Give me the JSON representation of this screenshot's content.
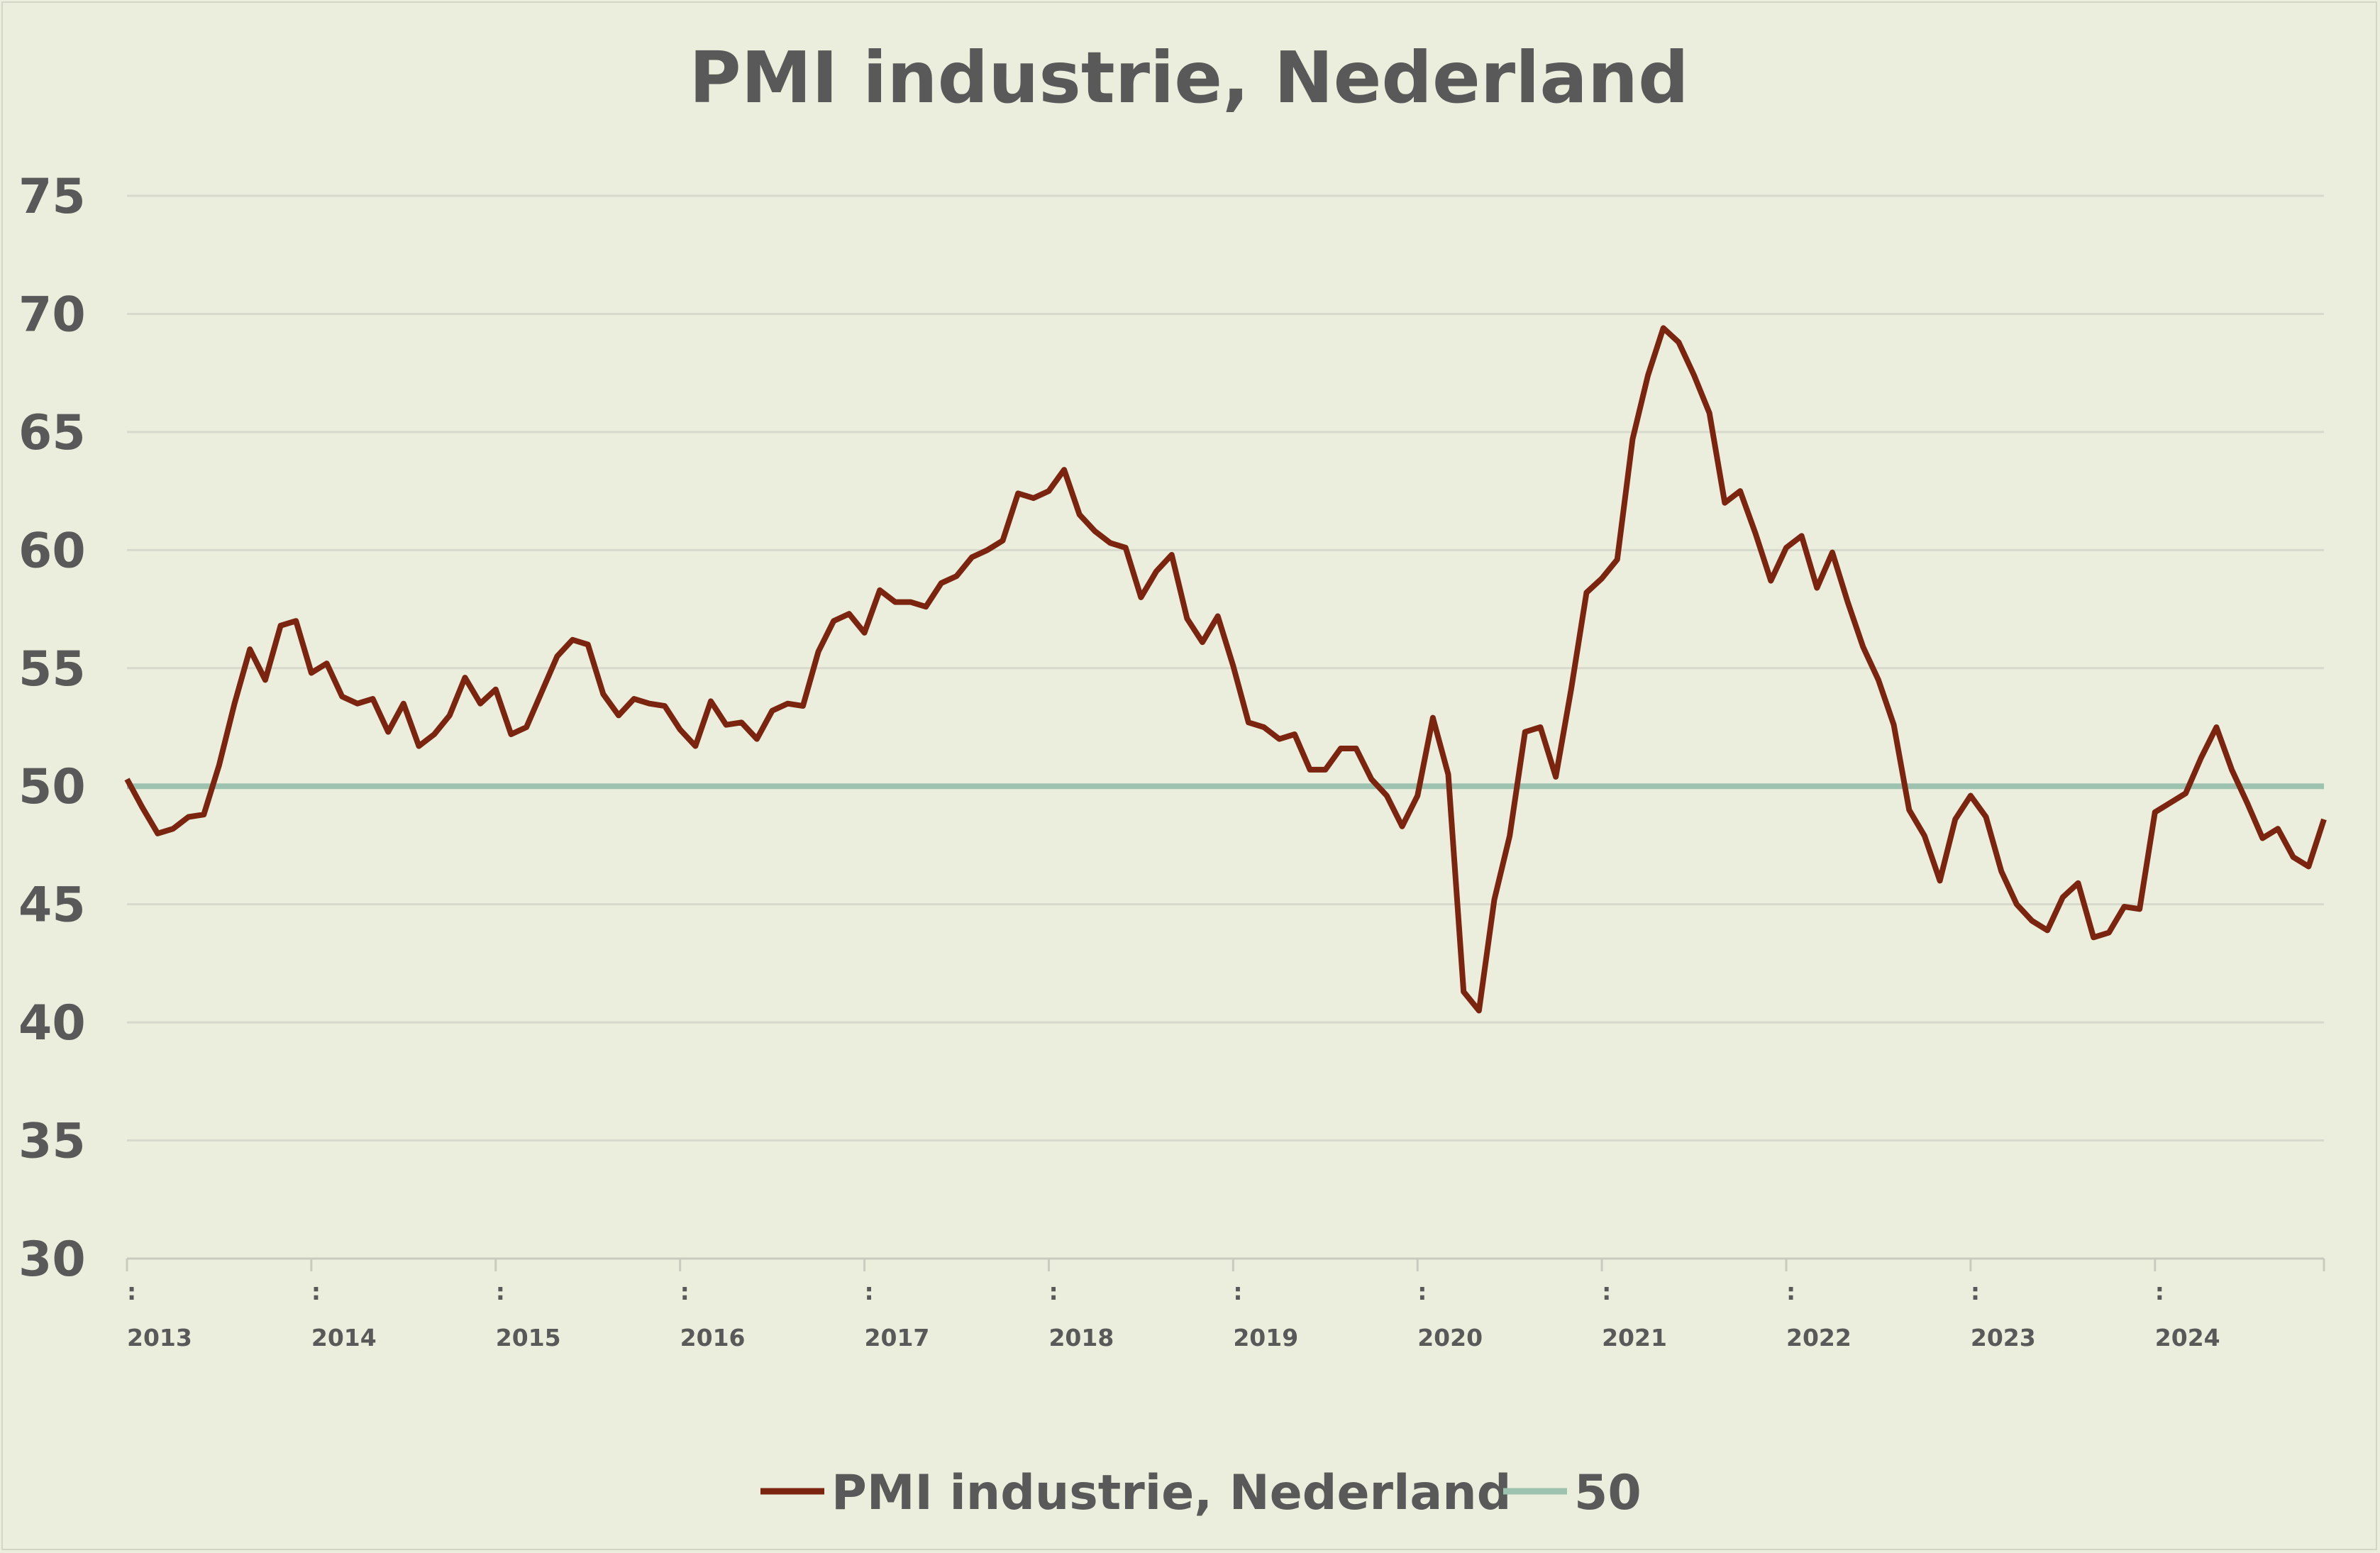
{
  "chart_data": {
    "type": "line",
    "title": "PMI industrie, Nederland",
    "xlabel": "",
    "ylabel": "",
    "ylim": [
      30,
      75
    ],
    "yticks": [
      "30",
      "35",
      "40",
      "45",
      "50",
      "55",
      "60",
      "65",
      "70",
      "75"
    ],
    "x_start": "2013-01",
    "x_end": "2024-12",
    "x_tick_labels": [
      "2013",
      "2014",
      "2015",
      "2016",
      "2017",
      "2018",
      "2019",
      "2020",
      "2021",
      "2022",
      "2023",
      "2024"
    ],
    "grid": true,
    "legend": "bottom",
    "series": [
      {
        "name": "PMI industrie, Nederland",
        "color": "#7b2410",
        "values": [
          50.3,
          49.1,
          48.0,
          48.2,
          48.7,
          48.8,
          50.9,
          53.5,
          55.8,
          54.5,
          56.8,
          57.0,
          54.8,
          55.2,
          53.8,
          53.5,
          53.7,
          52.3,
          53.5,
          51.7,
          52.2,
          53.0,
          54.6,
          53.5,
          54.1,
          52.2,
          52.5,
          54.0,
          55.5,
          56.2,
          56.0,
          53.9,
          53.0,
          53.7,
          53.5,
          53.4,
          52.4,
          51.7,
          53.6,
          52.6,
          52.7,
          52.0,
          53.2,
          53.5,
          53.4,
          55.7,
          57.0,
          57.3,
          56.5,
          58.3,
          57.8,
          57.8,
          57.6,
          58.6,
          58.9,
          59.7,
          60.0,
          60.4,
          62.4,
          62.2,
          62.5,
          63.4,
          61.5,
          60.8,
          60.3,
          60.1,
          58.0,
          59.1,
          59.8,
          57.1,
          56.1,
          57.2,
          55.1,
          52.7,
          52.5,
          52.0,
          52.2,
          50.7,
          50.7,
          51.6,
          51.6,
          50.3,
          49.6,
          48.3,
          49.6,
          52.9,
          50.5,
          41.3,
          40.5,
          45.2,
          47.9,
          52.3,
          52.5,
          50.4,
          54.1,
          58.2,
          58.8,
          59.6,
          64.7,
          67.4,
          69.4,
          68.8,
          67.4,
          65.8,
          62.0,
          62.5,
          60.7,
          58.7,
          60.1,
          60.6,
          58.4,
          59.9,
          57.8,
          55.9,
          54.5,
          52.6,
          49.0,
          47.9,
          46.0,
          48.6,
          49.6,
          48.7,
          46.4,
          45.0,
          44.3,
          43.9,
          45.3,
          45.9,
          43.6,
          43.8,
          44.9,
          44.8,
          48.9,
          49.3,
          49.7,
          51.2,
          52.5,
          50.7,
          49.3,
          47.8,
          48.2,
          47.0,
          46.6,
          48.6
        ]
      },
      {
        "name": "50",
        "color": "#9dc3b0",
        "constant": 50
      }
    ]
  },
  "legend": {
    "items": [
      {
        "label": "PMI industrie, Nederland",
        "color": "#7b2410"
      },
      {
        "label": "50",
        "color": "#9dc3b0"
      }
    ]
  },
  "colors": {
    "background": "#ebeedc",
    "text": "#595959",
    "grid": "#d6d9cc"
  }
}
